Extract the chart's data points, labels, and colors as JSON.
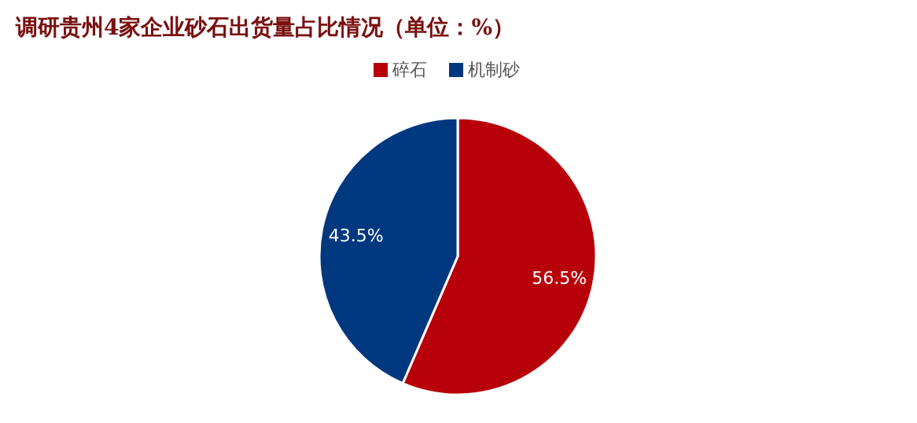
{
  "chart_data": {
    "type": "pie",
    "title": "调研贵州4家企业砂石出货量占比情况（单位：%）",
    "categories": [
      "碎石",
      "机制砂"
    ],
    "values": [
      56.5,
      43.5
    ],
    "colors": [
      "#b8000a",
      "#003880"
    ],
    "value_labels": [
      "56.5%",
      "43.5%"
    ],
    "legend": "top"
  }
}
